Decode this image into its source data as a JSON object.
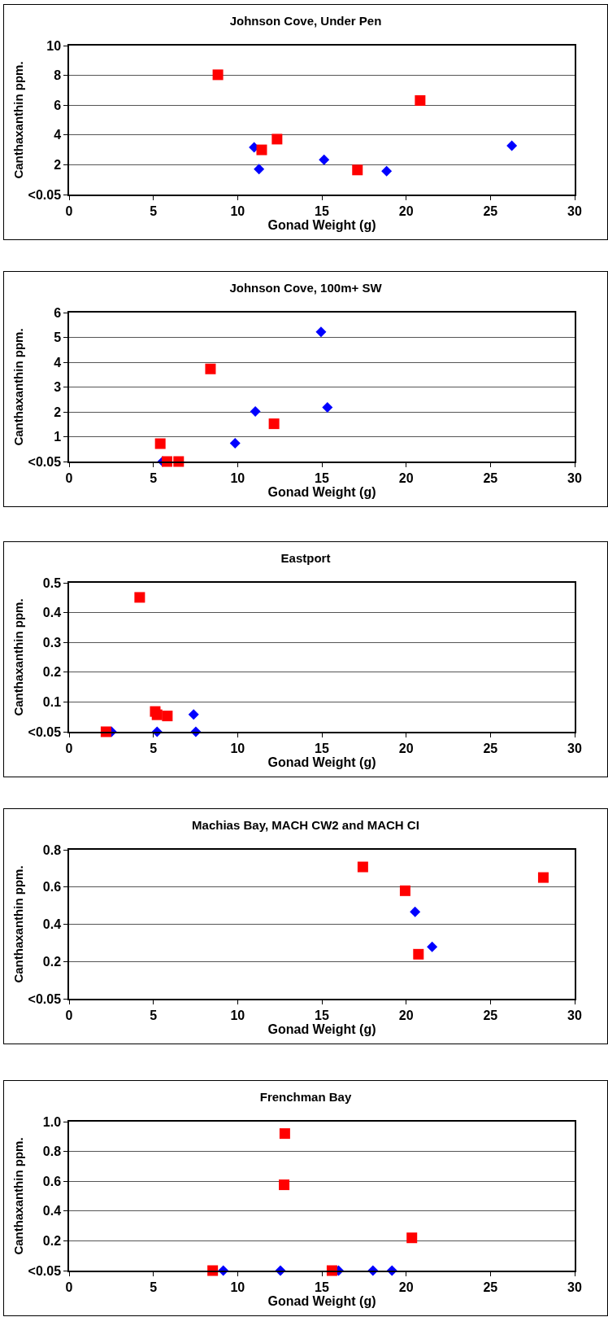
{
  "chart_data": [
    {
      "type": "scatter",
      "title": "Johnson Cove, Under Pen",
      "xlabel": "Gonad Weight (g)",
      "ylabel": "Canthaxanthin ppm.",
      "xlim": [
        0,
        30
      ],
      "xticks": [
        0,
        5,
        10,
        15,
        20,
        25,
        30
      ],
      "ylim": [
        0,
        10
      ],
      "yticks": [
        {
          "value": 0,
          "label": "<0.05"
        },
        2,
        4,
        6,
        8,
        10
      ],
      "grid": "y",
      "series": [
        {
          "color": "#0000ff",
          "marker": "diamond",
          "x": [
            10.98,
            11.27,
            15.13,
            18.84,
            26.27
          ],
          "values": [
            3.17,
            1.71,
            2.34,
            1.57,
            3.28
          ]
        },
        {
          "color": "#ff0000",
          "marker": "square",
          "x": [
            8.83,
            11.43,
            12.34,
            17.11,
            20.83
          ],
          "values": [
            8.04,
            3.0,
            3.72,
            1.65,
            6.31
          ]
        }
      ]
    },
    {
      "type": "scatter",
      "title": "Johnson Cove, 100m+ SW",
      "xlabel": "Gonad Weight (g)",
      "ylabel": "Canthaxanthin ppm.",
      "xlim": [
        0,
        30
      ],
      "xticks": [
        0,
        5,
        10,
        15,
        20,
        25,
        30
      ],
      "ylim": [
        0,
        6
      ],
      "yticks": [
        {
          "value": 0,
          "label": "<0.05"
        },
        1,
        2,
        3,
        4,
        5,
        6
      ],
      "grid": "y",
      "series": [
        {
          "color": "#0000ff",
          "marker": "diamond",
          "x": [
            5.55,
            9.85,
            11.05,
            14.95,
            15.33
          ],
          "values": [
            0,
            0.74,
            2.02,
            5.22,
            2.18
          ]
        },
        {
          "color": "#ff0000",
          "marker": "square",
          "x": [
            5.41,
            5.81,
            6.5,
            8.39,
            12.16
          ],
          "values": [
            0.72,
            0,
            0,
            3.73,
            1.52
          ]
        }
      ]
    },
    {
      "type": "scatter",
      "title": "Eastport",
      "xlabel": "Gonad Weight (g)",
      "ylabel": "Canthaxanthin ppm.",
      "xlim": [
        0,
        30
      ],
      "xticks": [
        0,
        5,
        10,
        15,
        20,
        25,
        30
      ],
      "ylim": [
        0,
        0.5
      ],
      "yticks": [
        {
          "value": 0,
          "label": "<0.05"
        },
        0.1,
        0.2,
        0.3,
        0.4,
        0.5
      ],
      "grid": "y",
      "series": [
        {
          "color": "#0000ff",
          "marker": "diamond",
          "x": [
            2.52,
            5.22,
            5.4,
            7.39,
            7.52
          ],
          "values": [
            0,
            0,
            null,
            0.058,
            0
          ]
        },
        {
          "color": "#ff0000",
          "marker": "square",
          "x": [
            2.19,
            4.19,
            5.11,
            5.22,
            5.83
          ],
          "values": [
            0,
            0.451,
            0.068,
            0.057,
            0.053
          ]
        }
      ]
    },
    {
      "type": "scatter",
      "title": "Machias Bay, MACH CW2 and MACH CI",
      "xlabel": "Gonad Weight (g)",
      "ylabel": "Canthaxanthin ppm.",
      "xlim": [
        0,
        30
      ],
      "xticks": [
        0,
        5,
        10,
        15,
        20,
        25,
        30
      ],
      "ylim": [
        0,
        0.8
      ],
      "yticks": [
        {
          "value": 0,
          "label": "<0.05"
        },
        0.2,
        0.4,
        0.6,
        0.8
      ],
      "grid": "y",
      "series": [
        {
          "color": "#0000ff",
          "marker": "diamond",
          "x": [
            20.53,
            21.54
          ],
          "values": [
            0.467,
            0.279
          ]
        },
        {
          "color": "#ff0000",
          "marker": "square",
          "x": [
            17.43,
            19.94,
            20.73,
            28.14
          ],
          "values": [
            0.708,
            0.58,
            0.239,
            0.651
          ]
        }
      ]
    },
    {
      "type": "scatter",
      "title": "Frenchman Bay",
      "xlabel": "Gonad Weight (g)",
      "ylabel": "Canthaxanthin ppm.",
      "xlim": [
        0,
        30
      ],
      "xticks": [
        0,
        5,
        10,
        15,
        20,
        25,
        30
      ],
      "ylim": [
        0,
        1.0
      ],
      "yticks": [
        {
          "value": 0,
          "label": "<0.05"
        },
        {
          "value": 0.2,
          "label": "0.2"
        },
        {
          "value": 0.4,
          "label": "0.4"
        },
        {
          "value": 0.6,
          "label": "0.6"
        },
        {
          "value": 0.8,
          "label": "0.8"
        },
        {
          "value": 1.0,
          "label": "1.0"
        }
      ],
      "grid": "y",
      "series": [
        {
          "color": "#0000ff",
          "marker": "diamond",
          "x": [
            9.15,
            12.54,
            15.99,
            18.03,
            19.16
          ],
          "values": [
            0,
            0,
            0,
            0,
            0
          ]
        },
        {
          "color": "#ff0000",
          "marker": "square",
          "x": [
            8.52,
            15.6,
            12.8,
            12.76,
            20.34
          ],
          "values": [
            0,
            0,
            0.92,
            0.576,
            0.22
          ]
        }
      ]
    }
  ]
}
